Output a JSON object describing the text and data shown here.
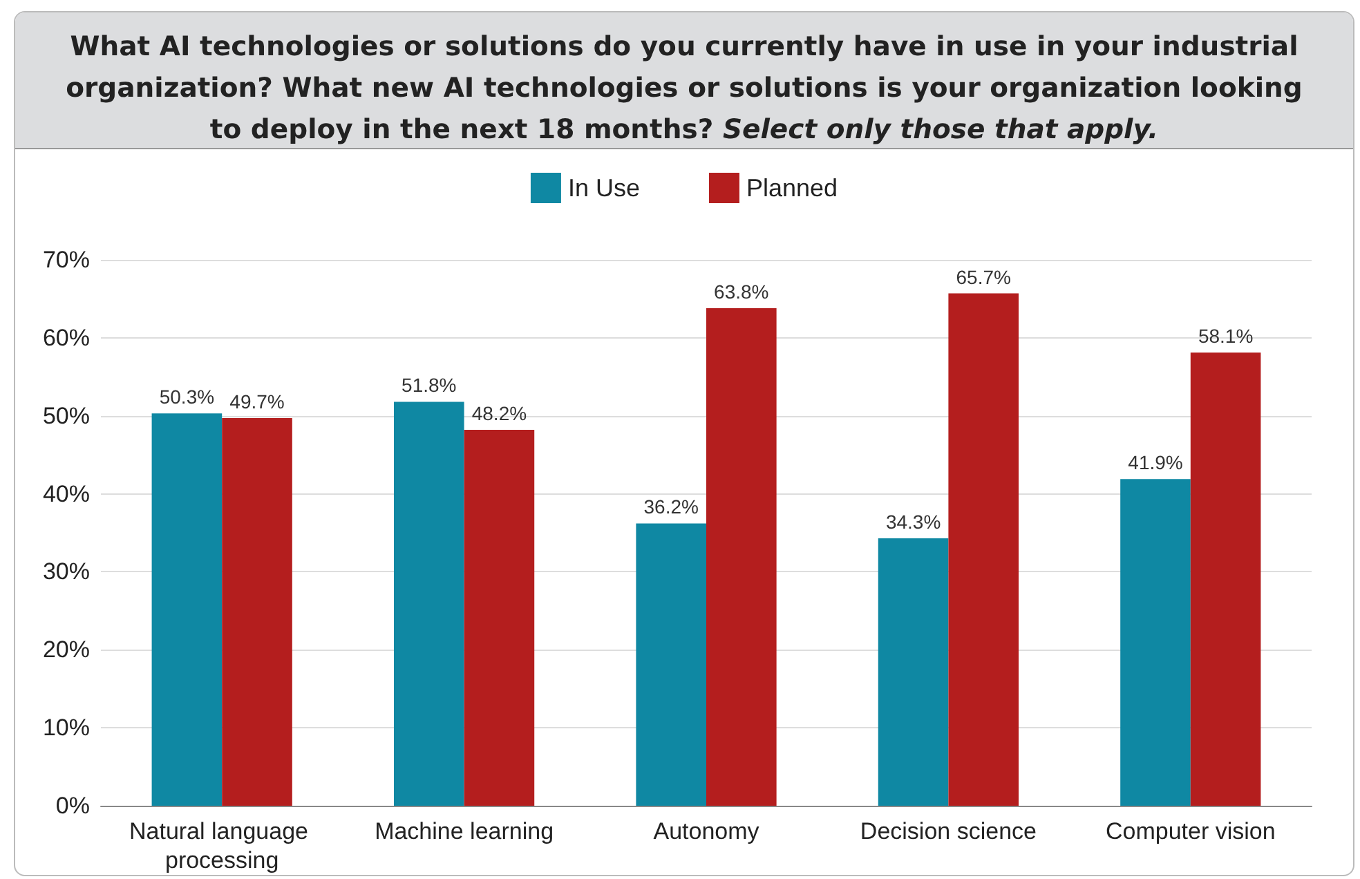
{
  "chart_data": {
    "type": "bar",
    "title": "What AI technologies or solutions do you currently have in use in your industrial organization? What new AI technologies or solutions is your organization looking to deploy in the next 18 months?",
    "subtitle": "Select only those that apply.",
    "categories": [
      "Natural language processing",
      "Machine learning",
      "Autonomy",
      "Decision science",
      "Computer vision"
    ],
    "series": [
      {
        "name": "In Use",
        "color": "#0f88a3",
        "values": [
          50.3,
          51.8,
          36.2,
          34.3,
          41.9
        ],
        "value_labels": [
          "50.3%",
          "51.8%",
          "36.2%",
          "34.3%",
          "41.9%"
        ]
      },
      {
        "name": "Planned",
        "color": "#b41e1e",
        "values": [
          49.7,
          48.2,
          63.8,
          65.7,
          58.1
        ],
        "value_labels": [
          "49.7%",
          "48.2%",
          "63.8%",
          "65.7%",
          "58.1%"
        ]
      }
    ],
    "ylim": [
      0,
      70
    ],
    "yticks": [
      {
        "value": 0,
        "label": "0%"
      },
      {
        "value": 10,
        "label": "10%"
      },
      {
        "value": 20,
        "label": "20%"
      },
      {
        "value": 30,
        "label": "30%"
      },
      {
        "value": 40,
        "label": "40%"
      },
      {
        "value": 50,
        "label": "50%"
      },
      {
        "value": 60,
        "label": "60%"
      },
      {
        "value": 70,
        "label": "70%"
      }
    ],
    "grid": "y",
    "legend": "top"
  }
}
